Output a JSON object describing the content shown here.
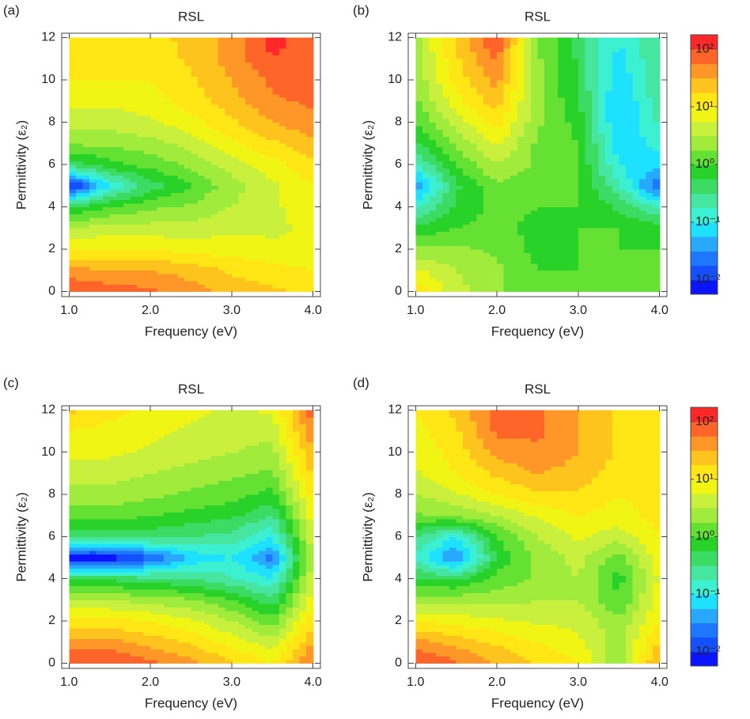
{
  "chart_data": [
    {
      "type": "contour",
      "panel_label": "(a)",
      "title": "RSL",
      "xlabel": "Frequency (eV)",
      "ylabel": "Permittivity (ε₂)",
      "x": [
        1,
        1.5,
        2,
        2.5,
        3,
        3.5,
        4
      ],
      "y": [
        0,
        1,
        2,
        3,
        4,
        5,
        6,
        7,
        8,
        9,
        10,
        11,
        12
      ],
      "z": [
        [
          2.0,
          1.9,
          1.8,
          1.6,
          1.4,
          1.3,
          1.2
        ],
        [
          1.6,
          1.5,
          1.5,
          1.4,
          1.2,
          1.1,
          1.0
        ],
        [
          1.0,
          1.0,
          1.0,
          0.9,
          0.9,
          0.8,
          0.8
        ],
        [
          0.5,
          0.6,
          0.6,
          0.6,
          0.7,
          0.7,
          0.8
        ],
        [
          -0.3,
          0,
          0.2,
          0.3,
          0.5,
          0.7,
          0.9
        ],
        [
          -2.2,
          -1.0,
          -0.4,
          0,
          0.4,
          0.7,
          1.0
        ],
        [
          -0.4,
          -0.1,
          0.1,
          0.3,
          0.6,
          0.9,
          1.2
        ],
        [
          0.3,
          0.3,
          0.4,
          0.6,
          0.9,
          1.2,
          1.4
        ],
        [
          0.6,
          0.6,
          0.7,
          0.9,
          1.2,
          1.5,
          1.7
        ],
        [
          0.8,
          0.8,
          0.9,
          1.1,
          1.4,
          1.7,
          1.8
        ],
        [
          1.0,
          1.0,
          1.0,
          1.2,
          1.5,
          1.8,
          1.9
        ],
        [
          1.1,
          1.1,
          1.1,
          1.3,
          1.6,
          2.0,
          1.9
        ],
        [
          1.1,
          1.1,
          1.2,
          1.3,
          1.6,
          2.1,
          1.8
        ]
      ],
      "xlim": [
        0.91,
        4.09
      ],
      "ylim": [
        -0.25,
        12.2
      ],
      "xticks": [
        {
          "value": 1,
          "label": "1.0"
        },
        {
          "value": 2,
          "label": "2.0"
        },
        {
          "value": 3,
          "label": "3.0"
        },
        {
          "value": 4,
          "label": "4.0"
        }
      ],
      "yticks": [
        0,
        2,
        4,
        6,
        8,
        10,
        12
      ],
      "zlim": [
        -2.25,
        2.25
      ],
      "colors": [
        "#0a14ff",
        "#1450ff",
        "#1e78ff",
        "#28a8ff",
        "#1ee0ff",
        "#3cf0d2",
        "#46e6a0",
        "#3cdc64",
        "#28d228",
        "#64e132",
        "#a0eb3c",
        "#c8f03c",
        "#f0f514",
        "#ffe614",
        "#ffc31e",
        "#ff9628",
        "#ff6428",
        "#ff2828"
      ]
    },
    {
      "type": "contour",
      "panel_label": "(b)",
      "title": "RSL",
      "xlabel": "Frequency (eV)",
      "ylabel": "Permittivity (ε₂)",
      "x": [
        1,
        1.5,
        2,
        2.5,
        3,
        3.5,
        4
      ],
      "y": [
        0,
        1,
        2,
        3,
        4,
        5,
        6,
        7,
        8,
        9,
        10,
        11,
        12
      ],
      "z": [
        [
          1.2,
          0.6,
          0.3,
          0,
          0,
          0,
          0
        ],
        [
          0.8,
          0.5,
          0.3,
          0,
          0,
          0,
          0
        ],
        [
          0.3,
          0.3,
          0.2,
          -0.1,
          0,
          0,
          0
        ],
        [
          -0.2,
          0,
          0.1,
          -0.1,
          0,
          0,
          -0.1
        ],
        [
          -0.8,
          -0.2,
          0.1,
          0,
          0,
          -0.3,
          -0.8
        ],
        [
          -1.5,
          -0.3,
          0.2,
          0.1,
          0,
          -0.7,
          -1.8
        ],
        [
          -0.8,
          0,
          0.5,
          0.2,
          0,
          -1.0,
          -1.2
        ],
        [
          -0.3,
          0.3,
          0.8,
          0.2,
          0,
          -1.2,
          -0.9
        ],
        [
          0,
          0.6,
          1.1,
          0.3,
          -0.1,
          -1.3,
          -0.7
        ],
        [
          0.2,
          0.9,
          1.4,
          0.3,
          -0.2,
          -1.3,
          -0.6
        ],
        [
          0.3,
          1.1,
          1.6,
          0.3,
          -0.3,
          -1.2,
          -0.5
        ],
        [
          0.4,
          1.2,
          1.8,
          0.3,
          -0.3,
          -1.1,
          -0.5
        ],
        [
          0.4,
          1.3,
          2.0,
          0.3,
          -0.4,
          -1.0,
          -0.5
        ]
      ],
      "xlim": [
        0.91,
        4.09
      ],
      "ylim": [
        -0.25,
        12.2
      ],
      "xticks": [
        {
          "value": 1,
          "label": "1.0"
        },
        {
          "value": 2,
          "label": "2.0"
        },
        {
          "value": 3,
          "label": "3.0"
        },
        {
          "value": 4,
          "label": "4.0"
        }
      ],
      "yticks": [
        0,
        2,
        4,
        6,
        8,
        10,
        12
      ],
      "zlim": [
        -2.25,
        2.25
      ],
      "colors": [
        "#0a14ff",
        "#1450ff",
        "#1e78ff",
        "#28a8ff",
        "#1ee0ff",
        "#3cf0d2",
        "#46e6a0",
        "#3cdc64",
        "#28d228",
        "#64e132",
        "#a0eb3c",
        "#c8f03c",
        "#f0f514",
        "#ffe614",
        "#ffc31e",
        "#ff9628",
        "#ff6428",
        "#ff2828"
      ],
      "colorbar": true,
      "colorbar_ticks": [
        {
          "value": 2,
          "label": "10²"
        },
        {
          "value": 1,
          "label": "10¹"
        },
        {
          "value": 0,
          "label": "10⁰"
        },
        {
          "value": -1,
          "label": "10⁻¹"
        },
        {
          "value": -2,
          "label": "10⁻²"
        }
      ]
    },
    {
      "type": "contour",
      "panel_label": "(c)",
      "title": "RSL",
      "xlabel": "Frequency (eV)",
      "ylabel": "Permittivity (ε₂)",
      "x": [
        1,
        1.5,
        2,
        2.5,
        3,
        3.5,
        4
      ],
      "y": [
        0,
        1,
        2,
        3,
        4,
        5,
        6,
        7,
        8,
        9,
        10,
        11,
        12
      ],
      "z": [
        [
          2.0,
          2.0,
          1.8,
          1.6,
          1.3,
          1.0,
          1.8
        ],
        [
          1.6,
          1.6,
          1.4,
          1.2,
          0.9,
          0.6,
          1.5
        ],
        [
          1.1,
          1.1,
          1.0,
          0.8,
          0.5,
          0.1,
          1.2
        ],
        [
          0.5,
          0.5,
          0.4,
          0.3,
          0,
          -0.4,
          0.9
        ],
        [
          -0.3,
          -0.3,
          -0.4,
          -0.5,
          -0.7,
          -1.0,
          0.7
        ],
        [
          -2.2,
          -2.2,
          -1.8,
          -1.2,
          -1.0,
          -1.6,
          0.6
        ],
        [
          -0.4,
          -0.4,
          -0.4,
          -0.5,
          -0.6,
          -1.0,
          0.7
        ],
        [
          0.1,
          0.1,
          0.0,
          -0.1,
          -0.2,
          -0.5,
          0.9
        ],
        [
          0.4,
          0.4,
          0.3,
          0.2,
          0.1,
          -0.1,
          1.1
        ],
        [
          0.6,
          0.6,
          0.5,
          0.4,
          0.3,
          0.2,
          1.3
        ],
        [
          0.8,
          0.8,
          0.7,
          0.6,
          0.5,
          0.4,
          1.5
        ],
        [
          1.0,
          0.9,
          0.8,
          0.7,
          0.6,
          0.6,
          1.7
        ],
        [
          1.3,
          1.1,
          0.9,
          0.8,
          0.7,
          0.8,
          1.9
        ]
      ],
      "xlim": [
        0.91,
        4.09
      ],
      "ylim": [
        -0.25,
        12.2
      ],
      "xticks": [
        {
          "value": 1,
          "label": "1.0"
        },
        {
          "value": 2,
          "label": "2.0"
        },
        {
          "value": 3,
          "label": "3.0"
        },
        {
          "value": 4,
          "label": "4.0"
        }
      ],
      "yticks": [
        0,
        2,
        4,
        6,
        8,
        10,
        12
      ],
      "zlim": [
        -2.25,
        2.25
      ],
      "colors": [
        "#0a14ff",
        "#1450ff",
        "#1e78ff",
        "#28a8ff",
        "#1ee0ff",
        "#3cf0d2",
        "#46e6a0",
        "#3cdc64",
        "#28d228",
        "#64e132",
        "#a0eb3c",
        "#c8f03c",
        "#f0f514",
        "#ffe614",
        "#ffc31e",
        "#ff9628",
        "#ff6428",
        "#ff2828"
      ]
    },
    {
      "type": "contour",
      "panel_label": "(d)",
      "title": "RSL",
      "xlabel": "Frequency (eV)",
      "ylabel": "Permittivity (ε₂)",
      "x": [
        1,
        1.5,
        2,
        2.5,
        3,
        3.5,
        4
      ],
      "y": [
        0,
        1,
        2,
        3,
        4,
        5,
        6,
        7,
        8,
        9,
        10,
        11,
        12
      ],
      "z": [
        [
          2.0,
          1.8,
          1.5,
          1.2,
          1.0,
          0.3,
          1.6
        ],
        [
          1.6,
          1.4,
          1.2,
          1.0,
          0.8,
          0.4,
          1.3
        ],
        [
          1.0,
          0.9,
          0.8,
          0.7,
          0.7,
          0.3,
          1.0
        ],
        [
          0.4,
          0.4,
          0.4,
          0.5,
          0.5,
          0.0,
          0.9
        ],
        [
          -0.2,
          -0.3,
          0.1,
          0.3,
          0.5,
          -0.1,
          0.8
        ],
        [
          -0.8,
          -1.6,
          -0.2,
          0.3,
          0.6,
          0.1,
          0.9
        ],
        [
          -0.5,
          -1.0,
          0.0,
          0.5,
          0.8,
          0.6,
          1.0
        ],
        [
          0.2,
          0.3,
          0.5,
          0.8,
          1.0,
          0.9,
          1.1
        ],
        [
          0.5,
          0.7,
          1.0,
          1.2,
          1.2,
          1.0,
          1.1
        ],
        [
          0.7,
          1.0,
          1.3,
          1.5,
          1.4,
          1.1,
          1.1
        ],
        [
          0.8,
          1.1,
          1.6,
          1.7,
          1.5,
          1.2,
          1.1
        ],
        [
          0.9,
          1.2,
          1.8,
          1.8,
          1.5,
          1.2,
          1.1
        ],
        [
          1.0,
          1.3,
          1.9,
          1.8,
          1.5,
          1.2,
          1.1
        ]
      ],
      "xlim": [
        0.91,
        4.09
      ],
      "ylim": [
        -0.25,
        12.2
      ],
      "xticks": [
        {
          "value": 1,
          "label": "1.0"
        },
        {
          "value": 2,
          "label": "2.0"
        },
        {
          "value": 3,
          "label": "3.0"
        },
        {
          "value": 4,
          "label": "4.0"
        }
      ],
      "yticks": [
        0,
        2,
        4,
        6,
        8,
        10,
        12
      ],
      "zlim": [
        -2.25,
        2.25
      ],
      "colors": [
        "#0a14ff",
        "#1450ff",
        "#1e78ff",
        "#28a8ff",
        "#1ee0ff",
        "#3cf0d2",
        "#46e6a0",
        "#3cdc64",
        "#28d228",
        "#64e132",
        "#a0eb3c",
        "#c8f03c",
        "#f0f514",
        "#ffe614",
        "#ffc31e",
        "#ff9628",
        "#ff6428",
        "#ff2828"
      ],
      "colorbar": true,
      "colorbar_ticks": [
        {
          "value": 2,
          "label": "10²"
        },
        {
          "value": 1,
          "label": "10¹"
        },
        {
          "value": 0,
          "label": "10⁰"
        },
        {
          "value": -1,
          "label": "10⁻¹"
        },
        {
          "value": -2,
          "label": "10⁻²"
        }
      ]
    }
  ]
}
